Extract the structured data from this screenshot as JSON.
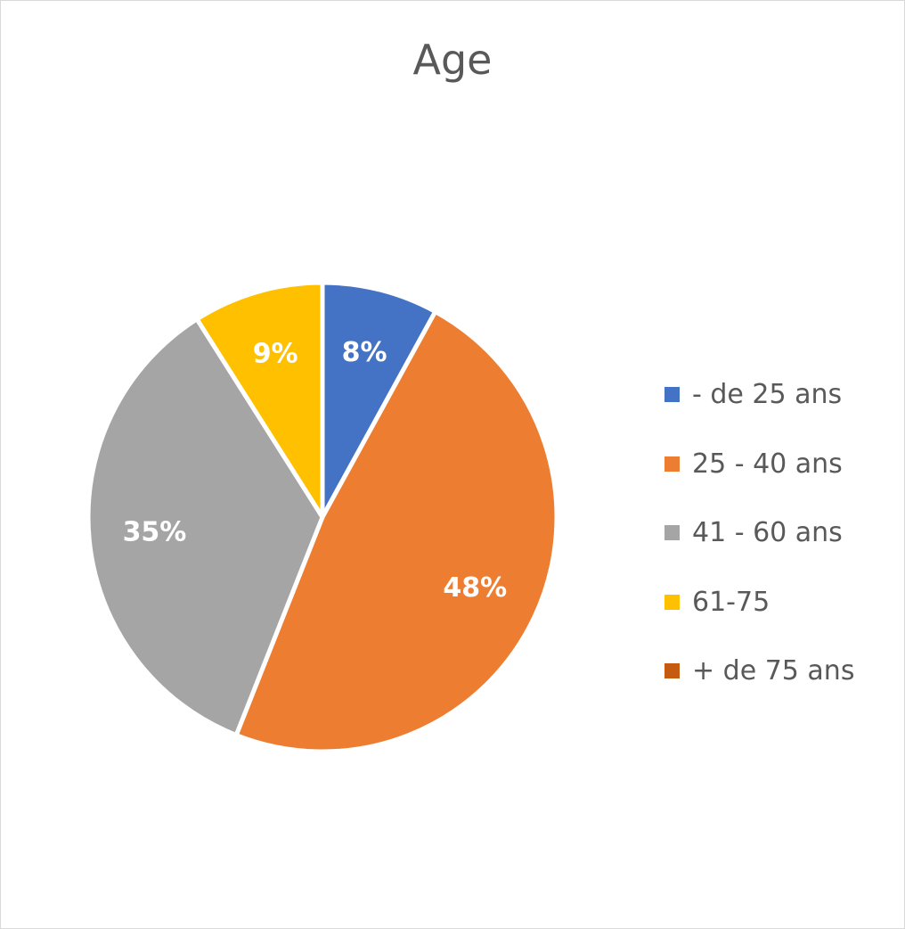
{
  "chart_data": {
    "type": "pie",
    "title": "Age",
    "categories": [
      "- de 25 ans",
      "25 - 40 ans",
      "41 - 60 ans",
      "61-75",
      "+ de 75 ans"
    ],
    "values": [
      8,
      48,
      35,
      9,
      0
    ],
    "data_labels": [
      "8%",
      "48%",
      "35%",
      "9%",
      ""
    ],
    "colors": [
      "#4472c4",
      "#ed7d31",
      "#a5a5a5",
      "#ffc000",
      "#c55a11"
    ],
    "legend_position": "right"
  }
}
